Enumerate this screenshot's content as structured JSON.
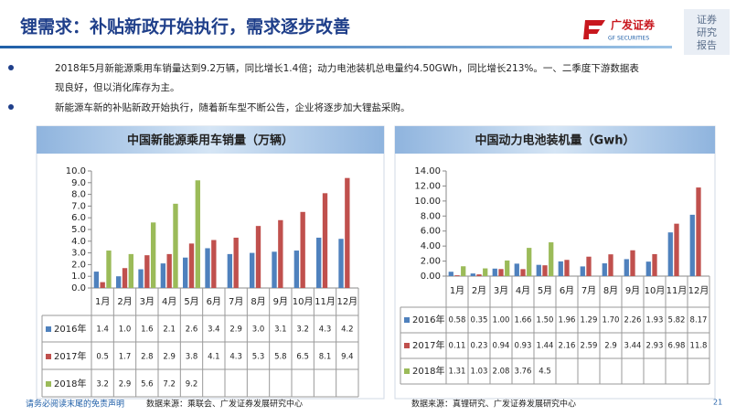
{
  "header": {
    "title": "锂需求：补贴新政开始执行，需求逐步改善",
    "logo_cn": "广发证券",
    "logo_en": "GF SECURITIES",
    "side_label": [
      "证券",
      "研究",
      "报告"
    ]
  },
  "bullets": [
    "2018年5月新能源乘用车销量达到9.2万辆，同比增长1.4倍；动力电池装机总电量约4.50GWh，同比增长213%。一、二季度下游数据表",
    "现良好，但以消化库存为主。",
    "新能源车新的补贴新政开始执行，随着新车型不断公告，企业将逐步加大锂盐采购。"
  ],
  "chart_data": [
    {
      "type": "bar",
      "title": "中国新能源乘用车销量（万辆）",
      "source": "数据来源：乘联会、广发证券发展研究中心",
      "categories": [
        "1月",
        "2月",
        "3月",
        "4月",
        "5月",
        "6月",
        "7月",
        "8月",
        "9月",
        "10月",
        "11月",
        "12月"
      ],
      "series": [
        {
          "name": "2016年",
          "color": "#4f81bd",
          "values": [
            1.4,
            1.0,
            1.6,
            2.1,
            2.6,
            3.4,
            2.9,
            3.0,
            3.1,
            3.2,
            4.3,
            4.2
          ],
          "value_labels": [
            "1.4",
            "1.0",
            "1.6",
            "2.1",
            "2.6",
            "3.4",
            "2.9",
            "3.0",
            "3.1",
            "3.2",
            "4.3",
            "4.2"
          ]
        },
        {
          "name": "2017年",
          "color": "#c0504d",
          "values": [
            0.5,
            1.7,
            2.8,
            2.9,
            3.8,
            4.1,
            4.3,
            5.3,
            5.8,
            6.5,
            8.1,
            9.4
          ],
          "value_labels": [
            "0.5",
            "1.7",
            "2.8",
            "2.9",
            "3.8",
            "4.1",
            "4.3",
            "5.3",
            "5.8",
            "6.5",
            "8.1",
            "9.4"
          ]
        },
        {
          "name": "2018年",
          "color": "#9bbb59",
          "values": [
            3.2,
            2.9,
            5.6,
            7.2,
            9.2,
            null,
            null,
            null,
            null,
            null,
            null,
            null
          ],
          "value_labels": [
            "3.2",
            "2.9",
            "5.6",
            "7.2",
            "9.2",
            null,
            null,
            null,
            null,
            null,
            null,
            null
          ]
        }
      ],
      "ylim": [
        0,
        10
      ],
      "yticks": [
        {
          "value": 0,
          "label": "0.0"
        },
        {
          "value": 1,
          "label": "1.0"
        },
        {
          "value": 2,
          "label": "2.0"
        },
        {
          "value": 3,
          "label": "3.0"
        },
        {
          "value": 4,
          "label": "4.0"
        },
        {
          "value": 5,
          "label": "5.0"
        },
        {
          "value": 6,
          "label": "6.0"
        },
        {
          "value": 7,
          "label": "7.0"
        },
        {
          "value": 8,
          "label": "8.0"
        },
        {
          "value": 9,
          "label": "9.0"
        },
        {
          "value": 10,
          "label": "10.0"
        }
      ]
    },
    {
      "type": "bar",
      "title": "中国动力电池装机量（Gwh）",
      "source": "数据来源：真锂研究、广发证券发展研究中心",
      "categories": [
        "1月",
        "2月",
        "3月",
        "4月",
        "5月",
        "6月",
        "7月",
        "8月",
        "9月",
        "10月",
        "11月",
        "12月"
      ],
      "series": [
        {
          "name": "2016年",
          "color": "#4f81bd",
          "values": [
            0.58,
            0.35,
            1.0,
            1.66,
            1.5,
            1.96,
            1.29,
            1.7,
            2.26,
            1.93,
            5.82,
            8.17
          ],
          "value_labels": [
            "0.58",
            "0.35",
            "1.00",
            "1.66",
            "1.50",
            "1.96",
            "1.29",
            "1.70",
            "2.26",
            "1.93",
            "5.82",
            "8.17"
          ]
        },
        {
          "name": "2017年",
          "color": "#c0504d",
          "values": [
            0.11,
            0.23,
            0.94,
            0.93,
            1.44,
            2.16,
            2.59,
            2.9,
            3.44,
            2.93,
            6.98,
            11.8
          ],
          "value_labels": [
            "0.11",
            "0.23",
            "0.94",
            "0.93",
            "1.44",
            "2.16",
            "2.59",
            "2.9",
            "3.44",
            "2.93",
            "6.98",
            "11.8"
          ]
        },
        {
          "name": "2018年",
          "color": "#9bbb59",
          "values": [
            1.31,
            1.03,
            2.08,
            3.76,
            4.5,
            null,
            null,
            null,
            null,
            null,
            null,
            null
          ],
          "value_labels": [
            "1.31",
            "1.03",
            "2.08",
            "3.76",
            "4.5",
            null,
            null,
            null,
            null,
            null,
            null,
            null
          ]
        }
      ],
      "ylim": [
        0,
        14
      ],
      "yticks": [
        {
          "value": 0,
          "label": "0.00"
        },
        {
          "value": 2,
          "label": "2.00"
        },
        {
          "value": 4,
          "label": "4.00"
        },
        {
          "value": 6,
          "label": "6.00"
        },
        {
          "value": 8,
          "label": "8.00"
        },
        {
          "value": 10,
          "label": "10.00"
        },
        {
          "value": 12,
          "label": "12.00"
        },
        {
          "value": 14,
          "label": "14.00"
        }
      ]
    }
  ],
  "footer": {
    "disclaimer": "请务必阅读末尾的免责声明",
    "page": "21"
  }
}
